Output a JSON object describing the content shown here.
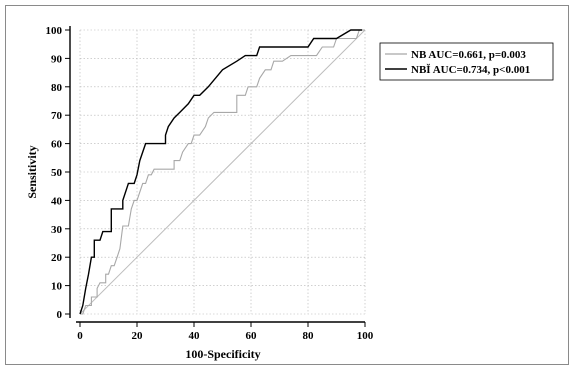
{
  "chart_data": {
    "type": "line",
    "title": "",
    "xlabel": "100-Specificity",
    "ylabel": "Sensitivity",
    "xlim": [
      0,
      100
    ],
    "ylim": [
      0,
      100
    ],
    "xticks": [
      "0",
      "20",
      "40",
      "60",
      "80",
      "100"
    ],
    "yticks": [
      "0",
      "10",
      "20",
      "30",
      "40",
      "50",
      "60",
      "70",
      "80",
      "90",
      "100"
    ],
    "grid": true,
    "legend_position": "right",
    "reference_line": {
      "x": [
        0,
        100
      ],
      "y": [
        0,
        100
      ],
      "color": "#bdbdbd"
    },
    "series": [
      {
        "name": "NB AUC=0.661, p=0.003",
        "color": "#a8a8a8",
        "x": [
          0,
          1,
          2,
          3,
          4,
          4,
          6,
          6,
          7,
          9,
          9,
          10,
          11,
          12,
          13,
          14,
          15,
          17,
          18,
          19,
          20,
          22,
          23,
          24,
          25,
          26,
          27,
          29,
          31,
          33,
          33,
          35,
          36,
          38,
          39,
          40,
          42,
          44,
          45,
          47,
          49,
          52,
          55,
          55,
          58,
          59,
          62,
          63,
          65,
          67,
          68,
          71,
          74,
          79,
          83,
          85,
          89,
          90,
          95,
          97,
          98,
          100
        ],
        "y": [
          0,
          0,
          3,
          3,
          3,
          6,
          6,
          9,
          11,
          11,
          14,
          14,
          17,
          17,
          20,
          23,
          31,
          31,
          37,
          40,
          40,
          46,
          46,
          49,
          49,
          51,
          51,
          51,
          51,
          51,
          54,
          54,
          57,
          60,
          60,
          63,
          63,
          66,
          69,
          71,
          71,
          71,
          71,
          77,
          77,
          80,
          80,
          83,
          86,
          86,
          89,
          89,
          91,
          91,
          91,
          94,
          94,
          97,
          97,
          97,
          100,
          100
        ]
      },
      {
        "name": "NBĬ AUC=0.734, p<0.001",
        "color": "#000000",
        "x": [
          0,
          1,
          2,
          3,
          4,
          5,
          5,
          7,
          8,
          9,
          10,
          11,
          11,
          15,
          15,
          17,
          19,
          20,
          21,
          23,
          29,
          30,
          30,
          31,
          33,
          35,
          38,
          40,
          42,
          45,
          50,
          55,
          58,
          62,
          63,
          70,
          80,
          82,
          89,
          90,
          95,
          97,
          99
        ],
        "y": [
          0,
          3,
          9,
          14,
          20,
          20,
          26,
          26,
          29,
          29,
          29,
          29,
          37,
          37,
          40,
          46,
          46,
          49,
          54,
          60,
          60,
          60,
          63,
          66,
          69,
          71,
          74,
          77,
          77,
          80,
          86,
          89,
          91,
          91,
          94,
          94,
          94,
          97,
          97,
          97,
          100,
          100,
          100
        ]
      }
    ]
  }
}
